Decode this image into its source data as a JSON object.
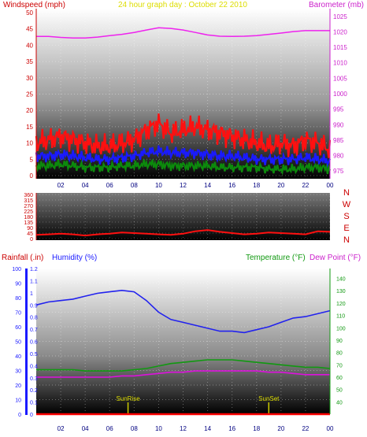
{
  "chart_data": [
    {
      "type": "line",
      "title": "24 hour graph day : October 22 2010",
      "ylabel_left": "Windspeed (mph)",
      "ylabel_right": "Barometer (mb)",
      "x_ticks": [
        "02",
        "04",
        "06",
        "08",
        "10",
        "12",
        "14",
        "16",
        "18",
        "20",
        "22",
        "00"
      ],
      "y_left_ticks": [
        "0",
        "5",
        "10",
        "15",
        "20",
        "25",
        "30",
        "35",
        "40",
        "45",
        "50"
      ],
      "y_right_ticks": [
        "975",
        "980",
        "985",
        "990",
        "995",
        "1000",
        "1005",
        "1010",
        "1015",
        "1020",
        "1025"
      ],
      "ylim_left": [
        0,
        50
      ],
      "ylim_right": [
        972.5,
        1027.5
      ],
      "grid": true,
      "series": [
        {
          "name": "Barometer (mb)",
          "axis": "right",
          "color": "#ee22ee",
          "x": [
            0,
            1,
            2,
            3,
            4,
            5,
            6,
            7,
            8,
            9,
            10,
            11,
            12,
            13,
            14,
            15,
            16,
            17,
            18,
            19,
            20,
            21,
            22,
            23,
            24
          ],
          "values": [
            1018.5,
            1018.5,
            1018.2,
            1018,
            1018,
            1018.3,
            1018.8,
            1019.2,
            1019.8,
            1020.6,
            1021.3,
            1021.1,
            1020.6,
            1019.8,
            1019,
            1018.6,
            1018.5,
            1018.6,
            1018.8,
            1019.2,
            1019.6,
            1020.1,
            1020.4,
            1020.4,
            1020.4
          ]
        },
        {
          "name": "Wind gust (mph)",
          "axis": "left",
          "color": "#ff1010",
          "x": [
            0,
            1,
            2,
            3,
            4,
            5,
            6,
            7,
            8,
            9,
            10,
            11,
            12,
            13,
            14,
            15,
            16,
            17,
            18,
            19,
            20,
            21,
            22,
            23,
            24
          ],
          "values": [
            10,
            11,
            12,
            11,
            10,
            9,
            9,
            10,
            11,
            14,
            16,
            13,
            14,
            15,
            14,
            13,
            12,
            11,
            10,
            9,
            10,
            9,
            11,
            10,
            8
          ]
        },
        {
          "name": "Wind average (mph)",
          "axis": "left",
          "color": "#1a1aff",
          "x": [
            0,
            1,
            2,
            3,
            4,
            5,
            6,
            7,
            8,
            9,
            10,
            11,
            12,
            13,
            14,
            15,
            16,
            17,
            18,
            19,
            20,
            21,
            22,
            23,
            24
          ],
          "values": [
            6,
            6,
            6.5,
            6,
            5.5,
            5,
            5,
            5.5,
            6,
            7,
            7.5,
            7,
            7,
            7,
            6.5,
            6,
            6,
            5.5,
            5,
            5,
            5,
            5,
            5.5,
            5,
            4.5
          ]
        },
        {
          "name": "Wind speed (mph)",
          "axis": "left",
          "color": "#0c8a0c",
          "x": [
            0,
            1,
            2,
            3,
            4,
            5,
            6,
            7,
            8,
            9,
            10,
            11,
            12,
            13,
            14,
            15,
            16,
            17,
            18,
            19,
            20,
            21,
            22,
            23,
            24
          ],
          "values": [
            3,
            3,
            3.5,
            3,
            2.5,
            2.5,
            2.5,
            3,
            3,
            3.5,
            3.5,
            3,
            3,
            3,
            3,
            2.5,
            2.5,
            2.5,
            2.5,
            2,
            2,
            2,
            2.5,
            2.5,
            2
          ]
        }
      ]
    },
    {
      "type": "line",
      "title": "",
      "x_ticks": [
        "02",
        "04",
        "06",
        "08",
        "10",
        "12",
        "14",
        "16",
        "18",
        "20",
        "22",
        "00"
      ],
      "y_left_ticks": [
        "0",
        "45",
        "90",
        "135",
        "180",
        "225",
        "270",
        "315",
        "360"
      ],
      "y_right_labels": [
        "N",
        "W",
        "S",
        "E",
        "N"
      ],
      "ylim_left": [
        0,
        360
      ],
      "grid": true,
      "series": [
        {
          "name": "Wind direction",
          "color": "#ff1010",
          "x": [
            0,
            1,
            2,
            3,
            4,
            5,
            6,
            7,
            8,
            9,
            10,
            11,
            12,
            13,
            14,
            15,
            16,
            17,
            18,
            19,
            20,
            21,
            22,
            23,
            24
          ],
          "values": [
            30,
            35,
            40,
            35,
            25,
            35,
            40,
            50,
            45,
            40,
            35,
            30,
            40,
            60,
            70,
            55,
            45,
            35,
            40,
            50,
            45,
            40,
            35,
            60,
            55
          ]
        }
      ]
    },
    {
      "type": "line",
      "title": "",
      "ylabel_left_outer": "Rainfall (.in)",
      "ylabel_left_inner": "Humidity (%)",
      "ylabel_right_a": "Temperature (°F)",
      "ylabel_right_b": "Dew Point (°F)",
      "x_ticks": [
        "02",
        "04",
        "06",
        "08",
        "10",
        "12",
        "14",
        "16",
        "18",
        "20",
        "22",
        "00"
      ],
      "humidity_ticks": [
        "0",
        "10",
        "20",
        "30",
        "40",
        "50",
        "60",
        "70",
        "80",
        "90",
        "100"
      ],
      "rain_ticks": [
        "0",
        "0.1",
        "0.2",
        "0.3",
        "0.4",
        "0.5",
        "0.6",
        "0.7",
        "0.8",
        "0.9",
        "1",
        "1.1",
        "1.2"
      ],
      "temp_ticks": [
        "40",
        "50",
        "60",
        "70",
        "80",
        "90",
        "100",
        "110",
        "120",
        "130",
        "140"
      ],
      "ylim_humidity": [
        0,
        100
      ],
      "ylim_rain": [
        0,
        1.2
      ],
      "ylim_temp": [
        30,
        148
      ],
      "grid": true,
      "annotations": [
        {
          "label": "SunRise",
          "x": 7.5
        },
        {
          "label": "SunSet",
          "x": 19.0
        }
      ],
      "series": [
        {
          "name": "Humidity (%)",
          "axis": "humidity",
          "color": "#2222ee",
          "x": [
            0,
            1,
            2,
            3,
            4,
            5,
            6,
            7,
            8,
            9,
            10,
            11,
            12,
            13,
            14,
            15,
            16,
            17,
            18,
            19,
            20,
            21,
            22,
            23,
            24
          ],
          "values": [
            75,
            77,
            78,
            79,
            81,
            83,
            84,
            85,
            84,
            78,
            70,
            65,
            63,
            61,
            59,
            57,
            57,
            56,
            58,
            60,
            63,
            66,
            67,
            69,
            71
          ]
        },
        {
          "name": "Temperature (°F)",
          "axis": "temp",
          "color": "#119911",
          "x": [
            0,
            1,
            2,
            3,
            4,
            5,
            6,
            7,
            8,
            9,
            10,
            11,
            12,
            13,
            14,
            15,
            16,
            17,
            18,
            19,
            20,
            21,
            22,
            23,
            24
          ],
          "values": [
            66,
            66,
            66,
            66,
            65,
            65,
            65,
            65,
            66,
            67,
            69,
            71,
            72,
            73,
            74,
            74,
            74,
            73,
            72,
            71,
            70,
            69,
            68,
            68,
            67
          ]
        },
        {
          "name": "Dew Point (°F)",
          "axis": "temp",
          "color": "#dd11dd",
          "x": [
            0,
            1,
            2,
            3,
            4,
            5,
            6,
            7,
            8,
            9,
            10,
            11,
            12,
            13,
            14,
            15,
            16,
            17,
            18,
            19,
            20,
            21,
            22,
            23,
            24
          ],
          "values": [
            60,
            60,
            60,
            60,
            60,
            60,
            60,
            61,
            61,
            62,
            63,
            64,
            64,
            65,
            65,
            65,
            65,
            65,
            65,
            64,
            64,
            63,
            62,
            62,
            62
          ]
        },
        {
          "name": "Rainfall (.in)",
          "axis": "rain",
          "color": "#ff0000",
          "x": [
            0,
            24
          ],
          "values": [
            0,
            0
          ]
        }
      ]
    }
  ]
}
